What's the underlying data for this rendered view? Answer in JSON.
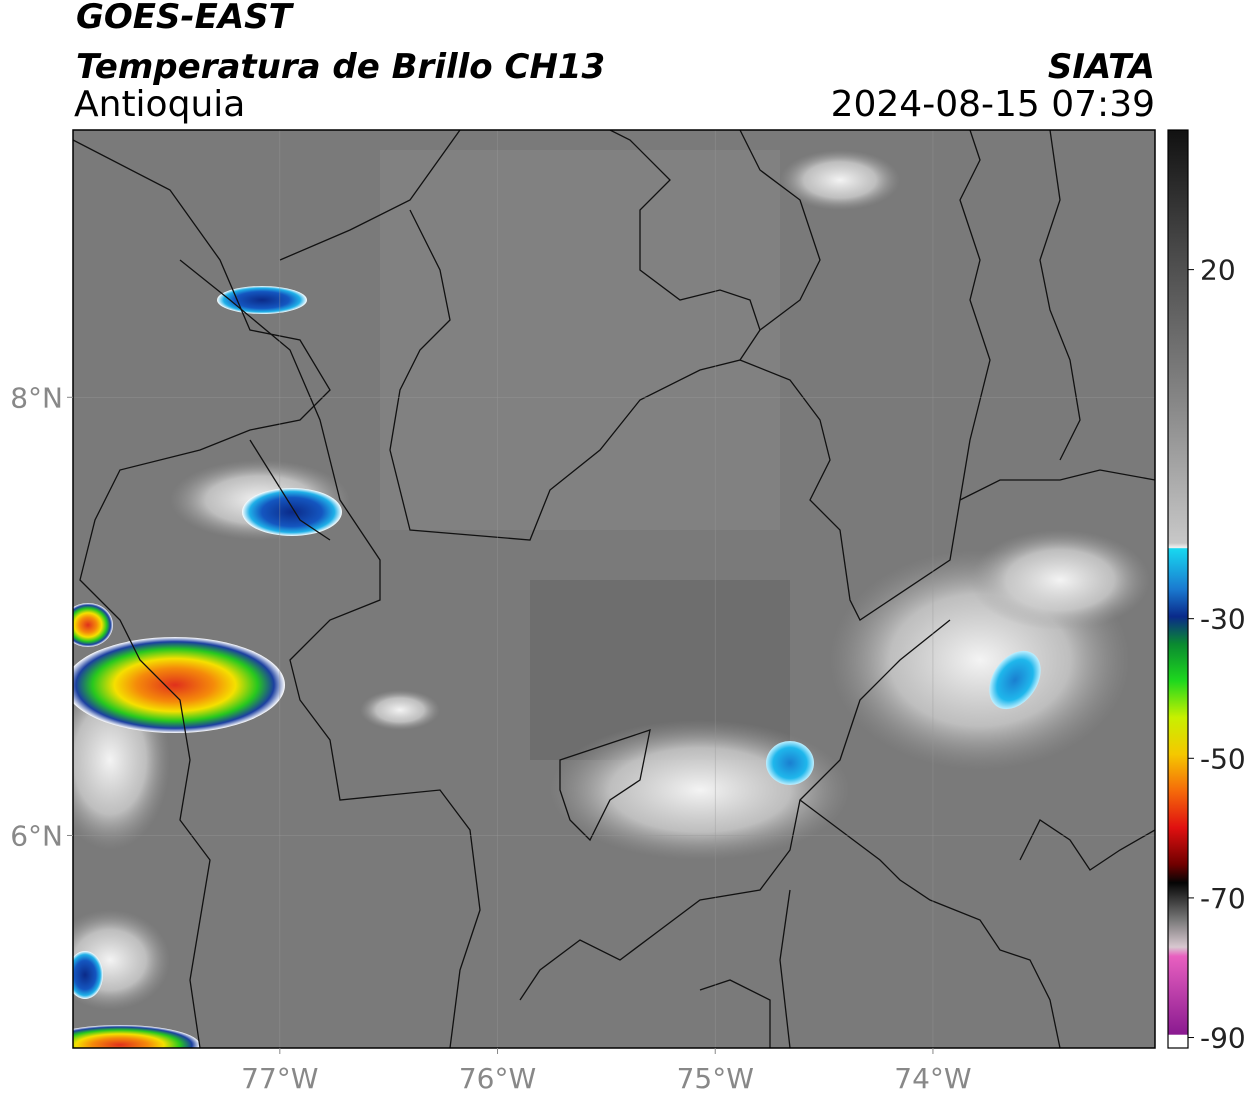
{
  "header": {
    "satellite": "GOES-EAST",
    "product": "Temperatura de Brillo CH13",
    "region": "Antioquia",
    "source": "SIATA",
    "datetime": "2024-08-15 07:39"
  },
  "map": {
    "xlim": [
      -77.95,
      -72.98
    ],
    "ylim": [
      5.03,
      9.22
    ],
    "xticks": [
      {
        "value": -77,
        "label": "77°W"
      },
      {
        "value": -76,
        "label": "76°W"
      },
      {
        "value": -75,
        "label": "75°W"
      },
      {
        "value": -74,
        "label": "74°W"
      }
    ],
    "yticks": [
      {
        "value": 8,
        "label": "8°N"
      },
      {
        "value": 6,
        "label": "6°N"
      }
    ],
    "grid": true
  },
  "colorbar": {
    "lim": [
      -91.5,
      40
    ],
    "ticks": [
      20,
      -30,
      -50,
      -70,
      -90
    ]
  }
}
